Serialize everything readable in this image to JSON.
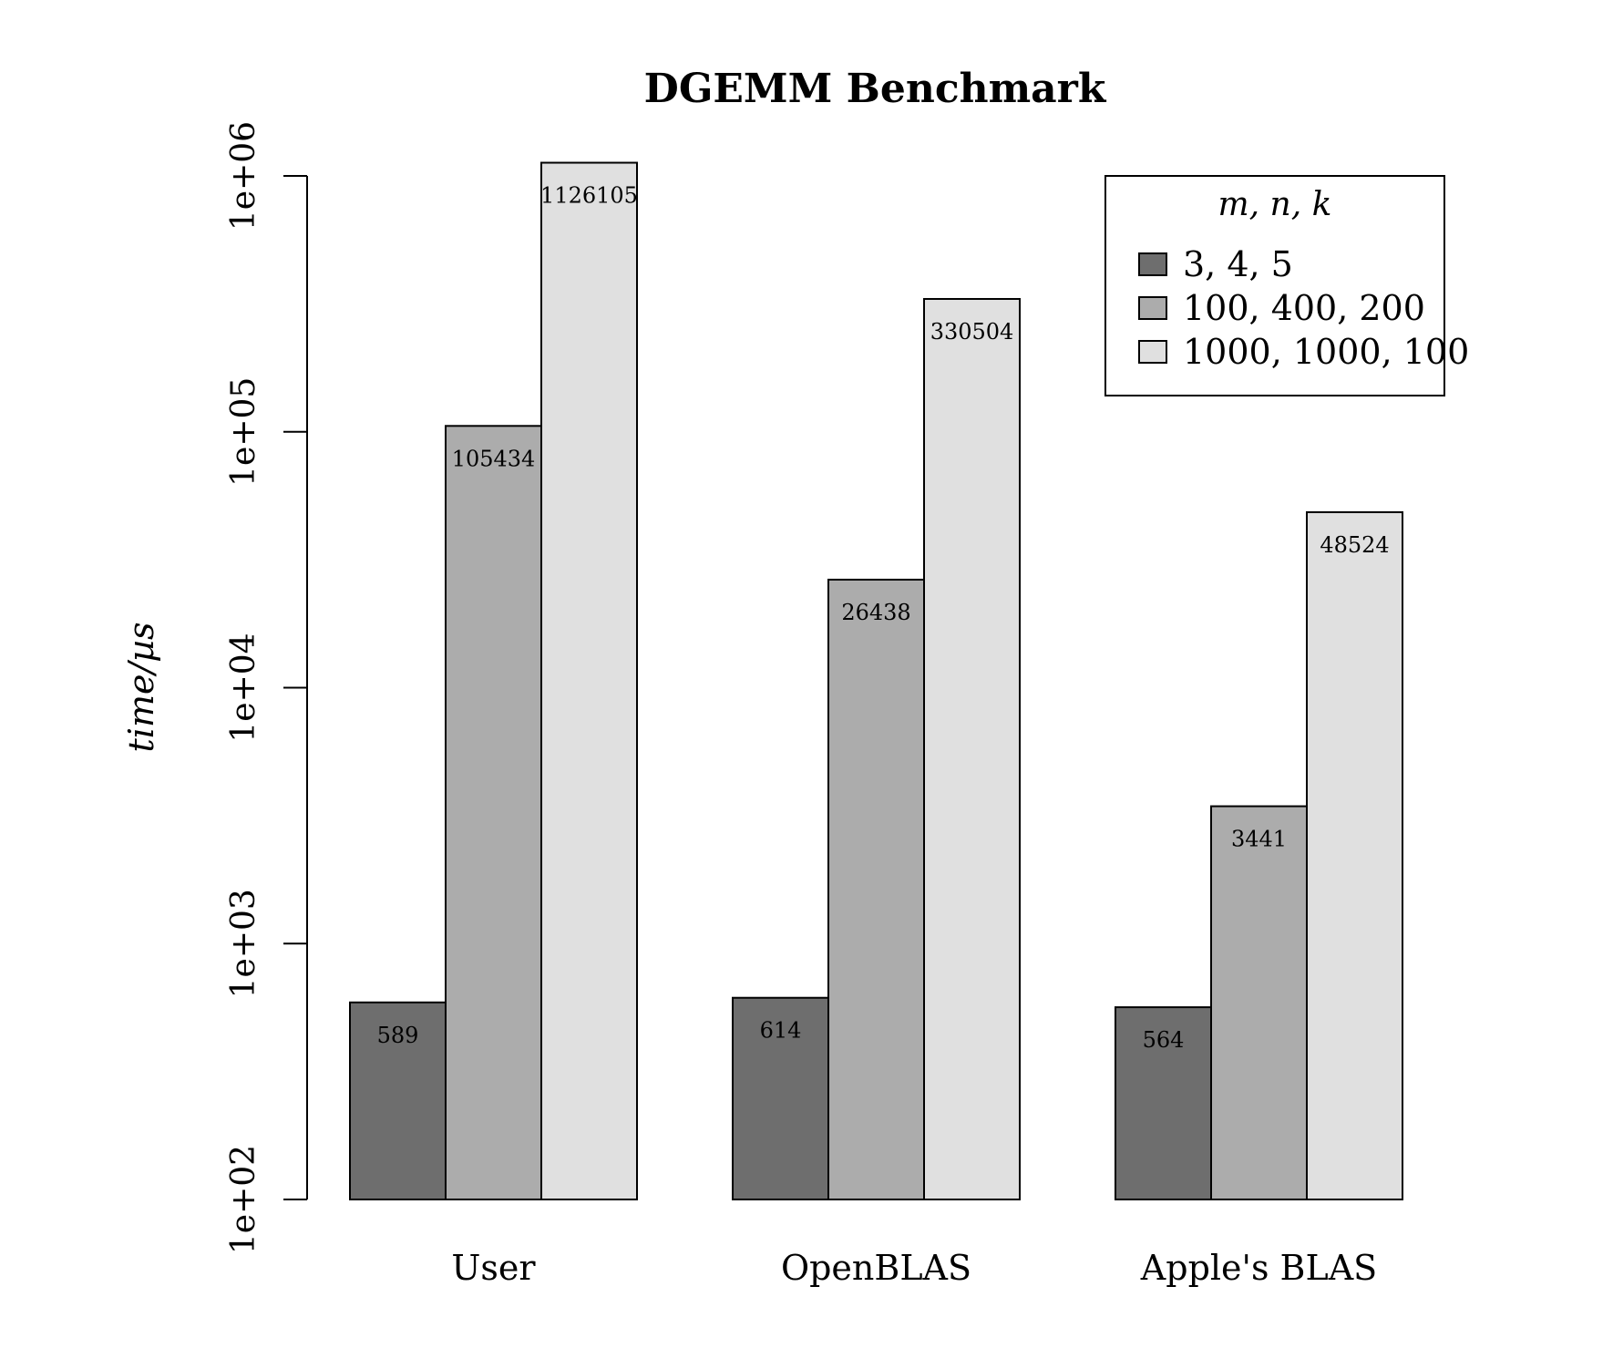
{
  "chart_data": {
    "type": "bar",
    "title": "DGEMM Benchmark",
    "ylabel": "time/µs",
    "xlabel": "",
    "yscale": "log",
    "ylim": [
      100,
      1000000
    ],
    "yticks": [
      100,
      1000,
      10000,
      100000,
      1000000
    ],
    "ytick_labels": [
      "1e+02",
      "1e+03",
      "1e+04",
      "1e+05",
      "1e+06"
    ],
    "categories": [
      "User",
      "OpenBLAS",
      "Apple's BLAS"
    ],
    "series": [
      {
        "name": "3, 4, 5",
        "values": [
          589,
          614,
          564
        ],
        "color": "#6e6e6e"
      },
      {
        "name": "100, 400, 200",
        "values": [
          105434,
          26438,
          3441
        ],
        "color": "#acacac"
      },
      {
        "name": "1000, 1000, 100",
        "values": [
          1126105,
          330504,
          48524
        ],
        "color": "#e0e0e0"
      }
    ],
    "data_labels": [
      [
        "589",
        "105434",
        "1126105"
      ],
      [
        "614",
        "26438",
        "330504"
      ],
      [
        "564",
        "3441",
        "48524"
      ]
    ],
    "legend": {
      "title": "m, n, k",
      "position": "top-right"
    },
    "grid": false
  }
}
